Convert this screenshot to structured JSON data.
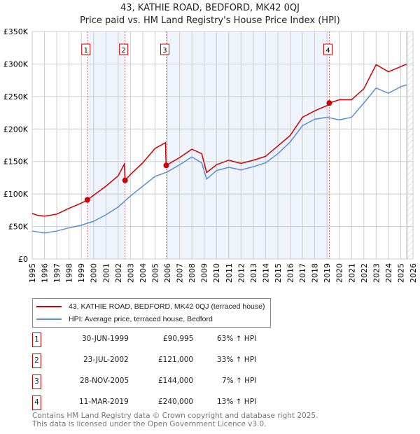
{
  "chart_data": {
    "type": "line",
    "title": "43, KATHIE ROAD, BEDFORD, MK42 0QJ",
    "subtitle": "Price paid vs. HM Land Registry's House Price Index (HPI)",
    "xlim": [
      1995,
      2026
    ],
    "ylim": [
      0,
      350000
    ],
    "yticks": [
      0,
      50000,
      100000,
      150000,
      200000,
      250000,
      300000,
      350000
    ],
    "ytick_labels": [
      "£0",
      "£50K",
      "£100K",
      "£150K",
      "£200K",
      "£250K",
      "£300K",
      "£350K"
    ],
    "xticks": [
      1995,
      1996,
      1997,
      1998,
      1999,
      2000,
      2001,
      2002,
      2003,
      2004,
      2005,
      2006,
      2007,
      2008,
      2009,
      2010,
      2011,
      2012,
      2013,
      2014,
      2015,
      2016,
      2017,
      2018,
      2019,
      2020,
      2021,
      2022,
      2023,
      2024,
      2025,
      2026
    ],
    "grid": true,
    "series": [
      {
        "name": "43, KATHIE ROAD, BEDFORD, MK42 0QJ (terraced house)",
        "color": "#cc0000",
        "x": [
          1995,
          1995.5,
          1996,
          1997,
          1998,
          1999,
          1999.5,
          2000,
          2001,
          2002,
          2002.5,
          2002.56,
          2003,
          2004,
          2005,
          2005.85,
          2005.9,
          2007,
          2008,
          2008.8,
          2009.2,
          2010,
          2011,
          2012,
          2013,
          2014,
          2015,
          2016,
          2017,
          2018,
          2019,
          2019.19,
          2020,
          2021,
          2022,
          2023,
          2024,
          2025,
          2025.5
        ],
        "y": [
          70000,
          67000,
          66000,
          69000,
          78000,
          86000,
          91000,
          98000,
          112000,
          128000,
          146000,
          121000,
          130000,
          148000,
          170000,
          179000,
          144000,
          156000,
          169000,
          162000,
          133000,
          145000,
          152000,
          147000,
          152000,
          158000,
          174000,
          190000,
          218000,
          228000,
          236000,
          240000,
          245000,
          245000,
          262000,
          299000,
          288000,
          296000,
          300000
        ]
      },
      {
        "name": "HPI: Average price, terraced house, Bedford",
        "color": "#5b8fd6",
        "x": [
          1995,
          1996,
          1997,
          1998,
          1999,
          2000,
          2001,
          2002,
          2003,
          2004,
          2005,
          2006,
          2007,
          2008,
          2008.8,
          2009.2,
          2010,
          2011,
          2012,
          2013,
          2014,
          2015,
          2016,
          2017,
          2018,
          2019,
          2020,
          2021,
          2022,
          2023,
          2024,
          2025,
          2025.5
        ],
        "y": [
          43000,
          40000,
          43000,
          48000,
          52000,
          58000,
          68000,
          80000,
          97000,
          112000,
          127000,
          134000,
          145000,
          157000,
          148000,
          123000,
          136000,
          141000,
          137000,
          142000,
          148000,
          162000,
          180000,
          205000,
          215000,
          218000,
          214000,
          218000,
          240000,
          263000,
          255000,
          265000,
          268000
        ]
      }
    ],
    "sales": [
      {
        "label": "1",
        "x": 1999.49,
        "price": 90995,
        "date": "30-JUN-1999",
        "price_text": "£90,995",
        "hpi": "63% ↑ HPI"
      },
      {
        "label": "2",
        "x": 2002.56,
        "price": 121000,
        "date": "23-JUL-2002",
        "price_text": "£121,000",
        "hpi": "33% ↑ HPI"
      },
      {
        "label": "3",
        "x": 2005.91,
        "price": 144000,
        "date": "28-NOV-2005",
        "price_text": "£144,000",
        "hpi": "7% ↑ HPI"
      },
      {
        "label": "4",
        "x": 2019.19,
        "price": 240000,
        "date": "11-MAR-2019",
        "price_text": "£240,000",
        "hpi": "13% ↑ HPI"
      }
    ],
    "shaded": [
      [
        1999.49,
        2002.56
      ],
      [
        2005.91,
        2019.19
      ]
    ],
    "forecast_start": 2025.5
  },
  "legend": {
    "red": "43, KATHIE ROAD, BEDFORD, MK42 0QJ (terraced house)",
    "blue": "HPI: Average price, terraced house, Bedford"
  },
  "footer": {
    "line1": "Contains HM Land Registry data © Crown copyright and database right 2025.",
    "line2": "This data is licensed under the Open Government Licence v3.0."
  }
}
